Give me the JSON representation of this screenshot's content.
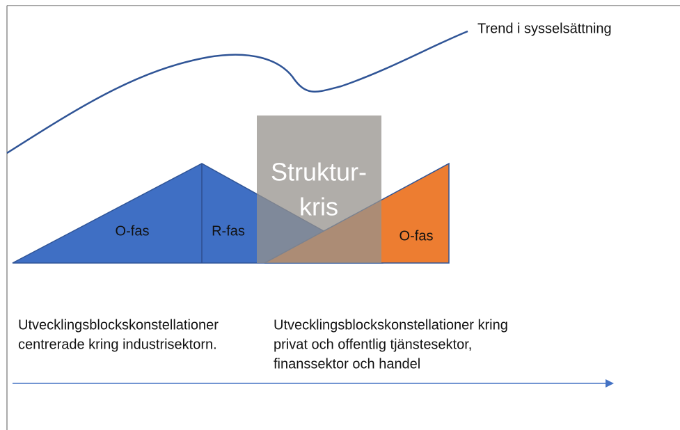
{
  "trend_label": "Trend i sysselsättning",
  "crisis": {
    "line1": "Struktur-",
    "line2": "kris"
  },
  "phases": [
    "O-fas",
    "R-fas",
    "O-fas"
  ],
  "left_text": [
    "Utvecklingsblockskonstellationer",
    "centrerade kring industrisektorn."
  ],
  "right_text": [
    "Utvecklingsblockskonstellationer kring",
    "privat och offentlig tjänstesektor,",
    "finanssektor och handel"
  ]
}
